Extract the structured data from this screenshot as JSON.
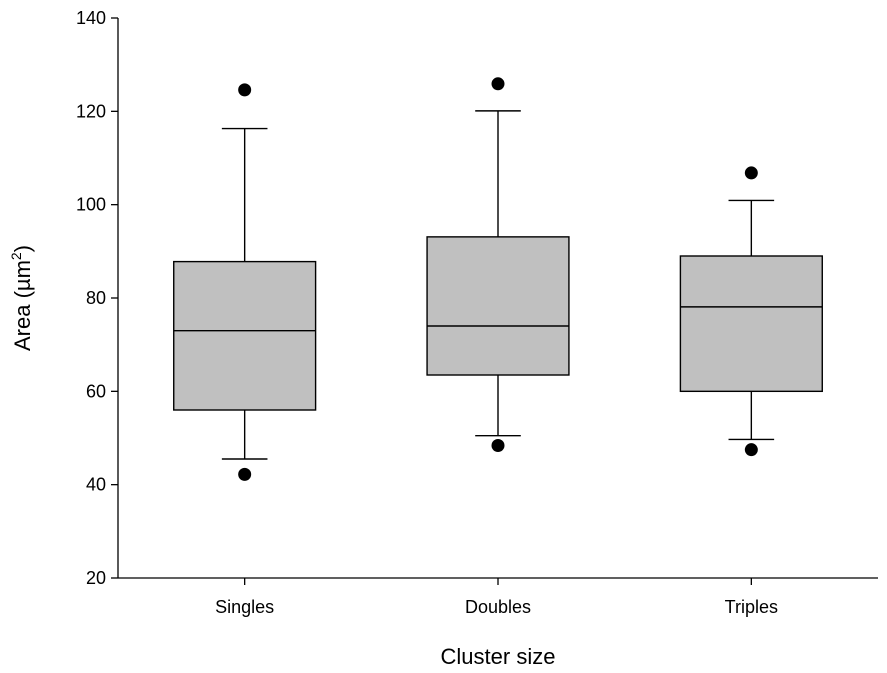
{
  "chart_data": {
    "type": "box",
    "xlabel": "Cluster size",
    "ylabel": {
      "prefix": "Area (µm",
      "superscript": "2",
      "suffix": ")"
    },
    "ylim": [
      20,
      140
    ],
    "yticks": [
      20,
      40,
      60,
      80,
      100,
      120,
      140
    ],
    "grid": false,
    "categories": [
      "Singles",
      "Doubles",
      "Triples"
    ],
    "boxes": [
      {
        "name": "Singles",
        "whisker_low": 45.5,
        "q1": 56,
        "median": 73,
        "q3": 87.8,
        "whisker_high": 116.3,
        "outliers": [
          42.2,
          124.6
        ]
      },
      {
        "name": "Doubles",
        "whisker_low": 50.5,
        "q1": 63.5,
        "median": 74,
        "q3": 93.1,
        "whisker_high": 120.1,
        "outliers": [
          48.4,
          125.9
        ]
      },
      {
        "name": "Triples",
        "whisker_low": 49.7,
        "q1": 60,
        "median": 78.1,
        "q3": 89,
        "whisker_high": 100.9,
        "outliers": [
          47.5,
          106.8
        ]
      }
    ],
    "colors": {
      "box_fill": "#c0c0c0",
      "stroke": "#000000"
    }
  }
}
